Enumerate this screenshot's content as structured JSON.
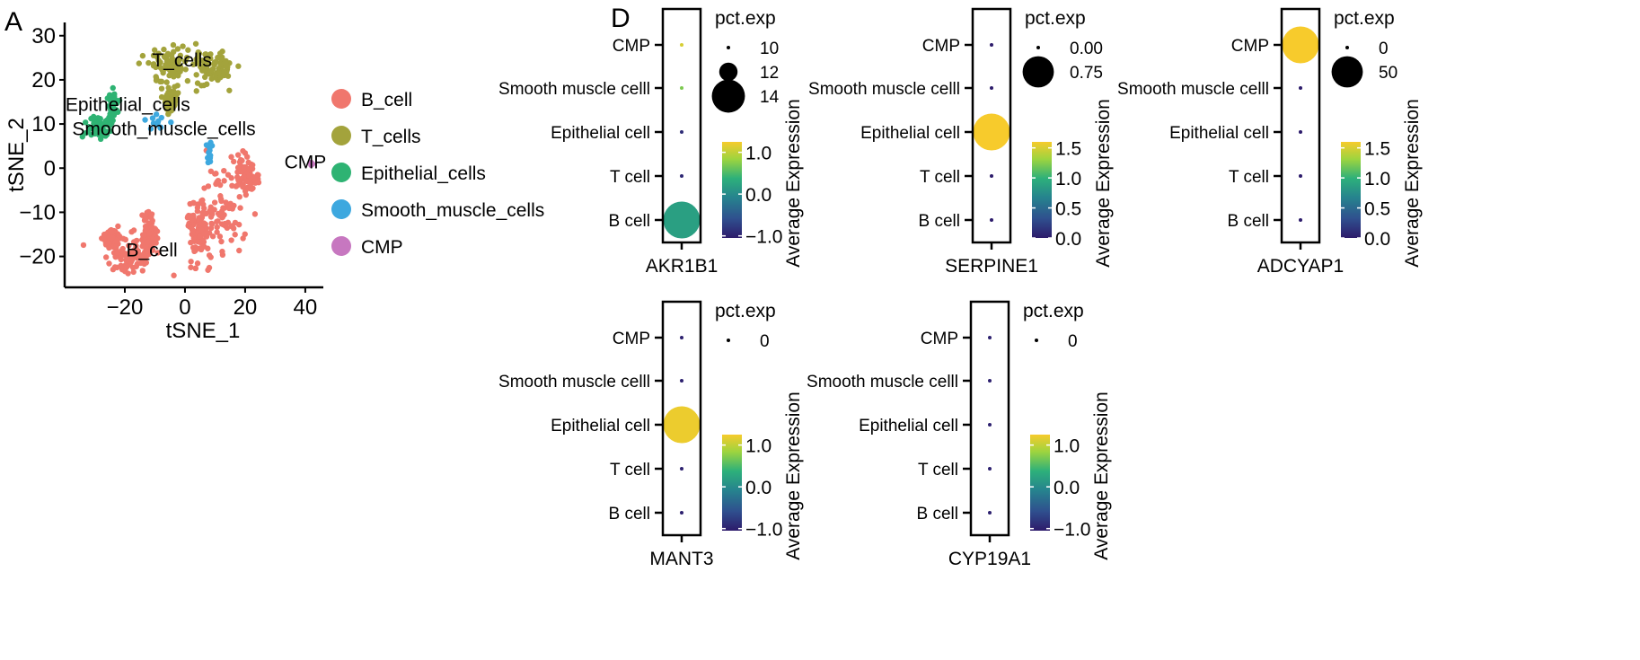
{
  "panel_labels": {
    "a": "A",
    "d": "D"
  },
  "colors": {
    "B_cell": "#F0776D",
    "T_cells": "#A3A33C",
    "Epithelial_cells": "#2EB373",
    "Smooth_muscle_cells": "#3DA8DF",
    "CMP": "#C777C0",
    "viridis_low": "#2D1B6B",
    "viridis_mid": "#2A8C8C",
    "viridis_high": "#F7CB2C"
  },
  "chart_data": [
    {
      "type": "scatter",
      "xlabel": "tSNE_1",
      "ylabel": "tSNE_2",
      "xticks": [
        "−20",
        "0",
        "20",
        "40"
      ],
      "yticks": [
        "−20",
        "−10",
        "0",
        "10",
        "20",
        "30"
      ],
      "xlim": [
        -40,
        46
      ],
      "ylim": [
        -27,
        33
      ],
      "cluster_labels": [
        {
          "text": "T_cells",
          "x": -1,
          "y": 23
        },
        {
          "text": "Epithelial_cells",
          "x": -19,
          "y": 13
        },
        {
          "text": "Smooth_muscle_cells",
          "x": -7,
          "y": 7.5
        },
        {
          "text": "CMP",
          "x": 40,
          "y": 0
        },
        {
          "text": "B_cell",
          "x": -11,
          "y": -20
        }
      ],
      "legend": [
        "B_cell",
        "T_cells",
        "Epithelial_cells",
        "Smooth_muscle_cells",
        "CMP"
      ],
      "clusters": [
        {
          "name": "B_cell",
          "n": 520,
          "blobs": [
            [
              -18,
              -20,
              7,
              3.2
            ],
            [
              -24,
              -16,
              3,
              2
            ],
            [
              -12,
              -15,
              2.5,
              4
            ],
            [
              12,
              -10,
              7,
              10
            ],
            [
              20,
              -2,
              4,
              4
            ],
            [
              4,
              -14,
              3,
              6
            ]
          ]
        },
        {
          "name": "T_cells",
          "n": 240,
          "blobs": [
            [
              -5,
              23,
              6,
              4
            ],
            [
              9,
              23,
              6,
              3.5
            ],
            [
              -5,
              15,
              2,
              2
            ]
          ]
        },
        {
          "name": "Epithelial_cells",
          "n": 110,
          "blobs": [
            [
              -29,
              9,
              3.5,
              2
            ],
            [
              -24,
              14,
              1.5,
              3
            ]
          ]
        },
        {
          "name": "Smooth_muscle_cells",
          "n": 28,
          "blobs": [
            [
              -10,
              10,
              3,
              1.5
            ],
            [
              8,
              4,
              1,
              3
            ]
          ]
        },
        {
          "name": "CMP",
          "n": 6,
          "blobs": [
            [
              42,
              1,
              0.6,
              0.6
            ]
          ]
        }
      ]
    },
    {
      "type": "dot",
      "gene": "AKR1B1",
      "categories": [
        "CMP",
        "Smooth muscle celll",
        "Epithelial cell",
        "T cell",
        "B cell"
      ],
      "avg_expression": [
        1.1,
        0.7,
        -0.9,
        -0.95,
        0.2
      ],
      "pct_exp": [
        10,
        10,
        10,
        10,
        14.5
      ],
      "size_legend_title": "pct.exp",
      "size_legend": [
        "10",
        "12",
        "14"
      ],
      "size_legend_values": [
        10,
        12,
        14
      ],
      "size_range": [
        10,
        14.5
      ],
      "color_legend_title": "Average Expression",
      "color_ticks": [
        "1.0",
        "0.0",
        "−1.0"
      ],
      "color_tick_values": [
        1.0,
        0.0,
        -1.0
      ],
      "color_range": [
        -1.05,
        1.25
      ]
    },
    {
      "type": "dot",
      "gene": "SERPINE1",
      "categories": [
        "CMP",
        "Smooth muscle celll",
        "Epithelial cell",
        "T cell",
        "B cell"
      ],
      "avg_expression": [
        0,
        0,
        1.6,
        0,
        0
      ],
      "pct_exp": [
        0,
        0,
        0.9,
        0,
        0
      ],
      "size_legend_title": "pct.exp",
      "size_legend": [
        "0.00",
        "0.75"
      ],
      "size_legend_values": [
        0,
        0.75
      ],
      "size_range": [
        0,
        0.9
      ],
      "color_legend_title": "Average Expression",
      "color_ticks": [
        "1.5",
        "1.0",
        "0.5",
        "0.0"
      ],
      "color_tick_values": [
        1.5,
        1.0,
        0.5,
        0.0
      ],
      "color_range": [
        0,
        1.6
      ]
    },
    {
      "type": "dot",
      "gene": "ADCYAP1",
      "categories": [
        "CMP",
        "Smooth muscle celll",
        "Epithelial cell",
        "T cell",
        "B cell"
      ],
      "avg_expression": [
        1.6,
        0,
        0,
        0,
        0
      ],
      "pct_exp": [
        60,
        0,
        0,
        0,
        0
      ],
      "size_legend_title": "pct.exp",
      "size_legend": [
        "0",
        "50"
      ],
      "size_legend_values": [
        0,
        50
      ],
      "size_range": [
        0,
        60
      ],
      "color_legend_title": "Average Expression",
      "color_ticks": [
        "1.5",
        "1.0",
        "0.5",
        "0.0"
      ],
      "color_tick_values": [
        1.5,
        1.0,
        0.5,
        0.0
      ],
      "color_range": [
        0,
        1.6
      ]
    },
    {
      "type": "dot",
      "gene": "MANT3",
      "categories": [
        "CMP",
        "Smooth muscle celll",
        "Epithelial cell",
        "T cell",
        "B cell"
      ],
      "avg_expression": [
        -1,
        -1,
        1.2,
        -1,
        -1
      ],
      "pct_exp": [
        0,
        0,
        1,
        0,
        0
      ],
      "size_legend_title": "pct.exp",
      "size_legend": [
        "0"
      ],
      "size_legend_values": [
        0
      ],
      "size_range": [
        0,
        1
      ],
      "color_legend_title": "Average Expression",
      "color_ticks": [
        "1.0",
        "0.0",
        "−1.0"
      ],
      "color_tick_values": [
        1.0,
        0.0,
        -1.0
      ],
      "color_range": [
        -1.05,
        1.25
      ]
    },
    {
      "type": "dot",
      "gene": "CYP19A1",
      "categories": [
        "CMP",
        "Smooth muscle celll",
        "Epithelial cell",
        "T cell",
        "B cell"
      ],
      "avg_expression": [
        -1,
        -1,
        -1,
        -1,
        -1
      ],
      "pct_exp": [
        0,
        0,
        0,
        0,
        0
      ],
      "size_legend_title": "pct.exp",
      "size_legend": [
        "0"
      ],
      "size_legend_values": [
        0
      ],
      "size_range": [
        0,
        1
      ],
      "color_legend_title": "Average Expression",
      "color_ticks": [
        "1.0",
        "0.0",
        "−1.0"
      ],
      "color_tick_values": [
        1.0,
        0.0,
        -1.0
      ],
      "color_range": [
        -1.05,
        1.25
      ]
    }
  ]
}
